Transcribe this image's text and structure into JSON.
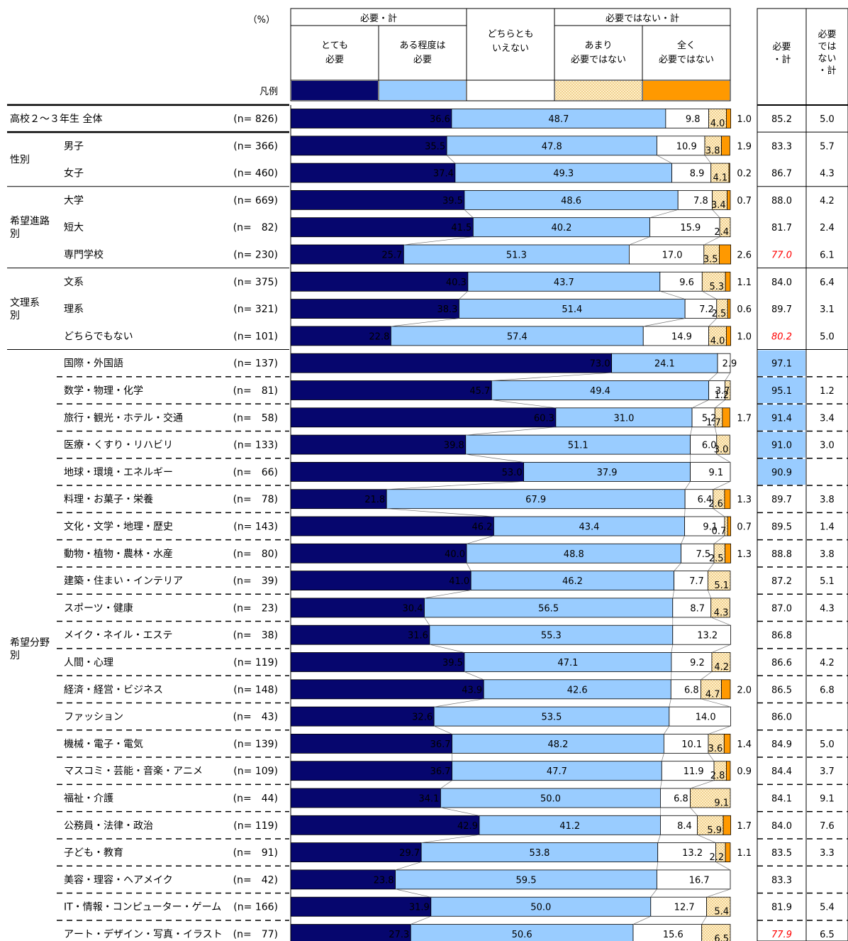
{
  "chart_data": {
    "type": "bar",
    "stacked": true,
    "percent_label": "（%）",
    "legend_label": "凡例",
    "group_headers": [
      {
        "label": "必要・計",
        "spans": [
          0,
          1
        ]
      },
      {
        "label": "必要ではない・計",
        "spans": [
          3,
          4
        ]
      }
    ],
    "categories": [
      "とても\n必要",
      "ある程度は\n必要",
      "どちらとも\nいえない",
      "あまり\n必要ではない",
      "全く\n必要ではない"
    ],
    "colors": [
      "#06066e",
      "#99ccff",
      "#ffffff",
      "#fff0c8",
      "#ff9900"
    ],
    "summary_headers": [
      "必要\n・計",
      "必要\nでは\nない\n・計"
    ],
    "summary_highlight": "#99ccff",
    "summary_low_color": "#ff0000",
    "rows": [
      {
        "group": "",
        "label": "高校２～３年生 全体",
        "n": "(n= 826)",
        "values": [
          36.6,
          48.7,
          9.8,
          4.0,
          1.0
        ],
        "total": "85.2",
        "not_total": "5.0",
        "group_start": true,
        "thick_top": false
      },
      {
        "group": "性別",
        "label": "男子",
        "n": "(n= 366)",
        "values": [
          35.5,
          47.8,
          10.9,
          3.8,
          1.9
        ],
        "total": "83.3",
        "not_total": "5.7",
        "group_start": true,
        "thick_top": true
      },
      {
        "group": "",
        "label": "女子",
        "n": "(n= 460)",
        "values": [
          37.4,
          49.3,
          8.9,
          4.1,
          0.2
        ],
        "total": "86.7",
        "not_total": "4.3"
      },
      {
        "group": "希望進路\n別",
        "label": "大学",
        "n": "(n= 669)",
        "values": [
          39.5,
          48.6,
          7.8,
          3.4,
          0.7
        ],
        "total": "88.0",
        "not_total": "4.2",
        "group_start": true
      },
      {
        "group": "",
        "label": "短大",
        "n": "(n=　82)",
        "values": [
          41.5,
          40.2,
          15.9,
          2.4,
          0
        ],
        "total": "81.7",
        "not_total": "2.4"
      },
      {
        "group": "",
        "label": "専門学校",
        "n": "(n= 230)",
        "values": [
          25.7,
          51.3,
          17.0,
          3.5,
          2.6
        ],
        "total": "77.0",
        "not_total": "6.1",
        "low": true
      },
      {
        "group": "文理系\n別",
        "label": "文系",
        "n": "(n= 375)",
        "values": [
          40.3,
          43.7,
          9.6,
          5.3,
          1.1
        ],
        "total": "84.0",
        "not_total": "6.4",
        "group_start": true
      },
      {
        "group": "",
        "label": "理系",
        "n": "(n= 321)",
        "values": [
          38.3,
          51.4,
          7.2,
          2.5,
          0.6
        ],
        "total": "89.7",
        "not_total": "3.1"
      },
      {
        "group": "",
        "label": "どちらでもない",
        "n": "(n= 101)",
        "values": [
          22.8,
          57.4,
          14.9,
          4.0,
          1.0
        ],
        "total": "80.2",
        "not_total": "5.0",
        "low": true
      },
      {
        "group": "希望分野\n別",
        "label": "国際・外国語",
        "n": "(n= 137)",
        "values": [
          73.0,
          24.1,
          2.9,
          0,
          0
        ],
        "total": "97.1",
        "not_total": "",
        "group_start": true,
        "hl": true
      },
      {
        "group": "",
        "label": "数学・物理・化学",
        "n": "(n=　81)",
        "values": [
          45.7,
          49.4,
          3.7,
          1.2,
          0
        ],
        "total": "95.1",
        "not_total": "1.2",
        "hl": true,
        "dashed": true
      },
      {
        "group": "",
        "label": "旅行・観光・ホテル・交通",
        "n": "(n=　58)",
        "values": [
          60.3,
          31.0,
          5.2,
          1.7,
          1.7
        ],
        "total": "91.4",
        "not_total": "3.4",
        "hl": true,
        "dashed": true
      },
      {
        "group": "",
        "label": "医療・くすり・リハビリ",
        "n": "(n= 133)",
        "values": [
          39.8,
          51.1,
          6.0,
          3.0,
          0
        ],
        "total": "91.0",
        "not_total": "3.0",
        "hl": true,
        "dashed": true
      },
      {
        "group": "",
        "label": "地球・環境・エネルギー",
        "n": "(n=　66)",
        "values": [
          53.0,
          37.9,
          9.1,
          0,
          0
        ],
        "total": "90.9",
        "not_total": "",
        "hl": true,
        "dashed": true
      },
      {
        "group": "",
        "label": "料理・お菓子・栄養",
        "n": "(n=　78)",
        "values": [
          21.8,
          67.9,
          6.4,
          2.6,
          1.3
        ],
        "total": "89.7",
        "not_total": "3.8",
        "dashed": true
      },
      {
        "group": "",
        "label": "文化・文学・地理・歴史",
        "n": "(n= 143)",
        "values": [
          46.2,
          43.4,
          9.1,
          0.7,
          0.7
        ],
        "total": "89.5",
        "not_total": "1.4",
        "dashed": true
      },
      {
        "group": "",
        "label": "動物・植物・農林・水産",
        "n": "(n=　80)",
        "values": [
          40.0,
          48.8,
          7.5,
          2.5,
          1.3
        ],
        "total": "88.8",
        "not_total": "3.8",
        "dashed": true
      },
      {
        "group": "",
        "label": "建築・住まい・インテリア",
        "n": "(n=　39)",
        "values": [
          41.0,
          46.2,
          7.7,
          5.1,
          0
        ],
        "total": "87.2",
        "not_total": "5.1",
        "dashed": true
      },
      {
        "group": "",
        "label": "スポーツ・健康",
        "n": "(n=　23)",
        "values": [
          30.4,
          56.5,
          8.7,
          4.3,
          0
        ],
        "total": "87.0",
        "not_total": "4.3",
        "dashed": true
      },
      {
        "group": "",
        "label": "メイク・ネイル・エステ",
        "n": "(n=　38)",
        "values": [
          31.6,
          55.3,
          13.2,
          0,
          0
        ],
        "total": "86.8",
        "not_total": "",
        "dashed": true
      },
      {
        "group": "",
        "label": "人間・心理",
        "n": "(n= 119)",
        "values": [
          39.5,
          47.1,
          9.2,
          4.2,
          0
        ],
        "total": "86.6",
        "not_total": "4.2",
        "dashed": true
      },
      {
        "group": "",
        "label": "経済・経営・ビジネス",
        "n": "(n= 148)",
        "values": [
          43.9,
          42.6,
          6.8,
          4.7,
          2.0
        ],
        "total": "86.5",
        "not_total": "6.8",
        "dashed": true
      },
      {
        "group": "",
        "label": "ファッション",
        "n": "(n=　43)",
        "values": [
          32.6,
          53.5,
          14.0,
          0,
          0
        ],
        "total": "86.0",
        "not_total": "",
        "dashed": true
      },
      {
        "group": "",
        "label": "機械・電子・電気",
        "n": "(n= 139)",
        "values": [
          36.7,
          48.2,
          10.1,
          3.6,
          1.4
        ],
        "total": "84.9",
        "not_total": "5.0",
        "dashed": true
      },
      {
        "group": "",
        "label": "マスコミ・芸能・音楽・アニメ",
        "n": "(n= 109)",
        "values": [
          36.7,
          47.7,
          11.9,
          2.8,
          0.9
        ],
        "total": "84.4",
        "not_total": "3.7",
        "dashed": true
      },
      {
        "group": "",
        "label": "福祉・介護",
        "n": "(n=　44)",
        "values": [
          34.1,
          50.0,
          6.8,
          9.1,
          0
        ],
        "total": "84.1",
        "not_total": "9.1",
        "dashed": true
      },
      {
        "group": "",
        "label": "公務員・法律・政治",
        "n": "(n= 119)",
        "values": [
          42.9,
          41.2,
          8.4,
          5.9,
          1.7
        ],
        "total": "84.0",
        "not_total": "7.6",
        "dashed": true
      },
      {
        "group": "",
        "label": "子ども・教育",
        "n": "(n=　91)",
        "values": [
          29.7,
          53.8,
          13.2,
          2.2,
          1.1
        ],
        "total": "83.5",
        "not_total": "3.3",
        "dashed": true
      },
      {
        "group": "",
        "label": "美容・理容・ヘアメイク",
        "n": "(n=　42)",
        "values": [
          23.8,
          59.5,
          16.7,
          0,
          0
        ],
        "total": "83.3",
        "not_total": "",
        "dashed": true
      },
      {
        "group": "",
        "label": "IT・情報・コンピューター・ゲーム",
        "n": "(n= 166)",
        "values": [
          31.9,
          50.0,
          12.7,
          5.4,
          0
        ],
        "total": "81.9",
        "not_total": "5.4",
        "dashed": true
      },
      {
        "group": "",
        "label": "アート・デザイン・写真・イラスト",
        "n": "(n=　77)",
        "values": [
          27.3,
          50.6,
          15.6,
          6.5,
          0
        ],
        "total": "77.9",
        "not_total": "6.5",
        "low": true,
        "dashed": true
      }
    ]
  }
}
